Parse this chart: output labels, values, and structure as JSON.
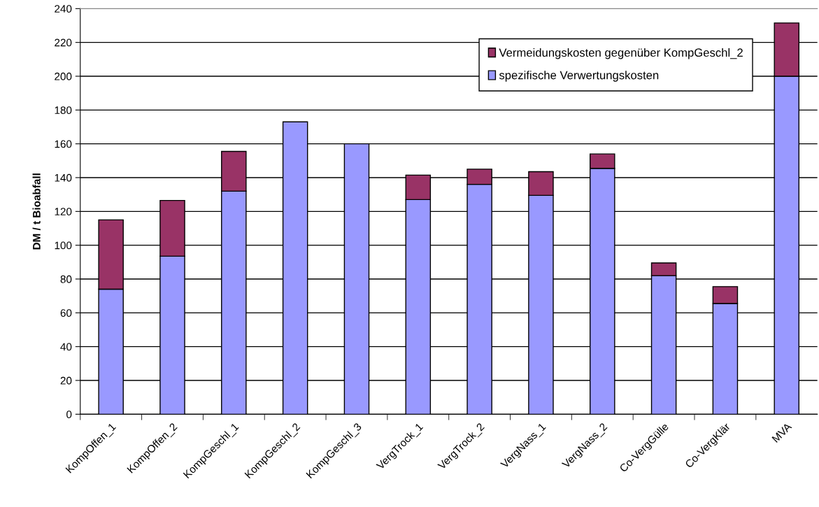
{
  "chart_data": {
    "type": "bar",
    "stacked": true,
    "ylabel": "DM / t Bioabfall",
    "categories": [
      "KompOffen_1",
      "KompOffen_2",
      "KompGeschl_1",
      "KompGeschl_2",
      "KompGeschl_3",
      "VergTrock_1",
      "VergTrock_2",
      "VergNass_1",
      "VergNass_2",
      "Co-VergGülle",
      "Co-VergKlär",
      "MVA"
    ],
    "series": [
      {
        "name": "spezifische Verwertungskosten",
        "color": "#9999ff",
        "values": [
          74,
          93.5,
          132,
          173,
          160,
          127,
          136,
          129.5,
          145.5,
          82,
          65.5,
          200
        ]
      },
      {
        "name": "Vermeidungskosten gegenüber KompGeschl_2",
        "color": "#993366",
        "values": [
          41,
          33,
          23.5,
          0,
          0,
          14.5,
          9,
          14,
          8.5,
          7.5,
          10,
          31.5
        ]
      }
    ],
    "ylim": [
      0,
      240
    ],
    "yticks": [
      0,
      20,
      40,
      60,
      80,
      100,
      120,
      140,
      160,
      180,
      200,
      220,
      240
    ],
    "grid": "y",
    "legend": "top right"
  }
}
